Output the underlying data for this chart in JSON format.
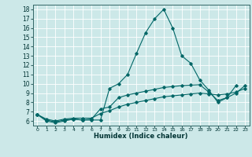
{
  "xlabel": "Humidex (Indice chaleur)",
  "bg_color": "#cce8e8",
  "grid_color": "#ffffff",
  "line_color": "#006666",
  "xlim": [
    -0.5,
    23.5
  ],
  "ylim": [
    5.5,
    18.5
  ],
  "xticks": [
    0,
    1,
    2,
    3,
    4,
    5,
    6,
    7,
    8,
    9,
    10,
    11,
    12,
    13,
    14,
    15,
    16,
    17,
    18,
    19,
    20,
    21,
    22,
    23
  ],
  "yticks": [
    6,
    7,
    8,
    9,
    10,
    11,
    12,
    13,
    14,
    15,
    16,
    17,
    18
  ],
  "line1_x": [
    0,
    1,
    2,
    3,
    4,
    5,
    6,
    7,
    8,
    9,
    10,
    11,
    12,
    13,
    14,
    15,
    16,
    17,
    18,
    19,
    20,
    21,
    22
  ],
  "line1_y": [
    6.7,
    6.0,
    5.8,
    6.0,
    6.2,
    6.1,
    6.1,
    6.1,
    9.5,
    10.0,
    11.0,
    13.3,
    15.5,
    17.0,
    18.0,
    16.0,
    13.0,
    12.2,
    10.4,
    9.3,
    8.0,
    8.5,
    9.8
  ],
  "line2_x": [
    0,
    1,
    2,
    3,
    4,
    5,
    6,
    7,
    8,
    9,
    10,
    11,
    12,
    13,
    14,
    15,
    16,
    17,
    18,
    19,
    20,
    21,
    22,
    23
  ],
  "line2_y": [
    6.7,
    6.1,
    5.9,
    6.1,
    6.2,
    6.1,
    6.2,
    7.3,
    7.5,
    8.5,
    8.8,
    9.0,
    9.2,
    9.4,
    9.6,
    9.7,
    9.8,
    9.85,
    9.9,
    9.1,
    8.2,
    8.5,
    9.0,
    9.8
  ],
  "line3_x": [
    0,
    1,
    2,
    3,
    4,
    5,
    6,
    7,
    8,
    9,
    10,
    11,
    12,
    13,
    14,
    15,
    16,
    17,
    18,
    19,
    20,
    21,
    22,
    23
  ],
  "line3_y": [
    6.7,
    6.2,
    6.0,
    6.2,
    6.3,
    6.3,
    6.3,
    6.8,
    7.1,
    7.5,
    7.8,
    8.0,
    8.2,
    8.4,
    8.6,
    8.7,
    8.8,
    8.9,
    9.0,
    8.9,
    8.8,
    8.9,
    9.1,
    9.5
  ],
  "xlabel_fontsize": 6.0,
  "tick_fontsize_x": 4.5,
  "tick_fontsize_y": 5.5
}
